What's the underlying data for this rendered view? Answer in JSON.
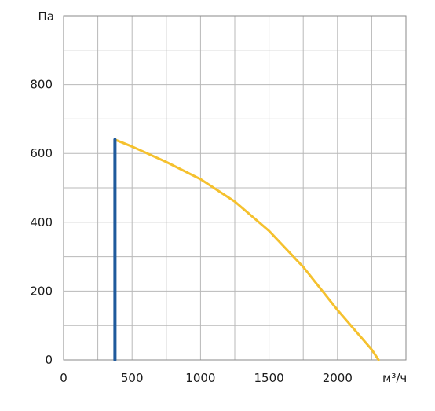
{
  "chart_data": {
    "type": "line",
    "ylabel": "Па",
    "xlabel": "м³/ч",
    "xlim": [
      0,
      2500
    ],
    "ylim": [
      0,
      1000
    ],
    "x_ticks": [
      {
        "value": 0,
        "label": "0"
      },
      {
        "value": 500,
        "label": "500"
      },
      {
        "value": 1000,
        "label": "1000"
      },
      {
        "value": 1500,
        "label": "1500"
      },
      {
        "value": 2000,
        "label": "2000"
      }
    ],
    "y_ticks": [
      {
        "value": 0,
        "label": "0"
      },
      {
        "value": 200,
        "label": "200"
      },
      {
        "value": 400,
        "label": "400"
      },
      {
        "value": 600,
        "label": "600"
      },
      {
        "value": 800,
        "label": "800"
      }
    ],
    "x_grid_step": 250,
    "y_grid_step": 100,
    "grid": true,
    "series": [
      {
        "color": "#f5c12e",
        "x": [
          375,
          500,
          750,
          1000,
          1250,
          1500,
          1750,
          2000,
          2250,
          2300
        ],
        "y": [
          640,
          620,
          575,
          525,
          460,
          375,
          270,
          145,
          30,
          0
        ]
      },
      {
        "color": "#1f5a9c",
        "x": [
          375,
          375
        ],
        "y": [
          0,
          640
        ]
      }
    ]
  }
}
